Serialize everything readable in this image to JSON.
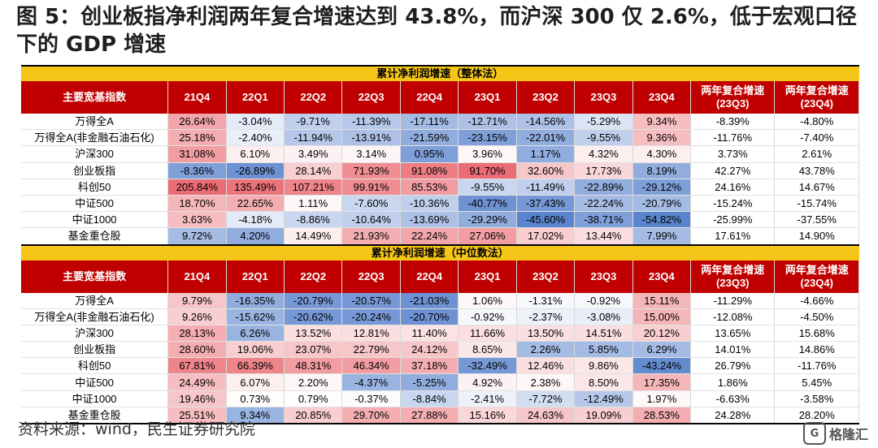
{
  "title": "图 5：创业板指净利润两年复合增速达到 43.8%，而沪深 300 仅 2.6%，低于宏观口径下的 GDP 增速",
  "source": "资料来源：wind，民生证券研究院",
  "watermark": "格隆汇",
  "watermark_logo": "G",
  "colors": {
    "header_bg": "#c00000",
    "section_bg": "#f5c518",
    "positive": "#e8636b",
    "negative": "#4a78c8"
  },
  "sections": [
    {
      "title": "累计净利润增速（整体法）",
      "headers": [
        "主要宽基指数",
        "21Q4",
        "22Q1",
        "22Q2",
        "22Q3",
        "22Q4",
        "23Q1",
        "23Q2",
        "23Q3",
        "23Q4",
        "两年复合增速\n(23Q3)",
        "两年复合增速\n(23Q4)"
      ],
      "rows": [
        [
          "万得全A",
          "26.64%",
          "-3.04%",
          "-9.71%",
          "-11.39%",
          "-17.11%",
          "-12.71%",
          "-14.56%",
          "-5.29%",
          "9.34%",
          "-8.39%",
          "-4.80%"
        ],
        [
          "万得全A(非金融石油石化)",
          "25.18%",
          "-2.40%",
          "-11.94%",
          "-13.91%",
          "-21.59%",
          "-23.15%",
          "-22.01%",
          "-9.55%",
          "9.36%",
          "-11.76%",
          "-7.40%"
        ],
        [
          "沪深300",
          "31.08%",
          "6.10%",
          "3.49%",
          "3.14%",
          "0.95%",
          "3.96%",
          "1.17%",
          "4.32%",
          "4.30%",
          "3.73%",
          "2.61%"
        ],
        [
          "创业板指",
          "-8.36%",
          "-26.89%",
          "28.14%",
          "71.93%",
          "91.08%",
          "91.70%",
          "32.60%",
          "17.73%",
          "8.19%",
          "42.27%",
          "43.78%"
        ],
        [
          "科创50",
          "205.84%",
          "135.49%",
          "107.21%",
          "99.91%",
          "85.53%",
          "-9.55%",
          "-11.49%",
          "-22.89%",
          "-29.12%",
          "24.16%",
          "14.67%"
        ],
        [
          "中证500",
          "18.70%",
          "22.65%",
          "1.11%",
          "-7.60%",
          "-10.36%",
          "-40.77%",
          "-37.43%",
          "-22.24%",
          "-20.79%",
          "-15.24%",
          "-15.74%"
        ],
        [
          "中证1000",
          "3.63%",
          "-4.18%",
          "-8.86%",
          "-10.64%",
          "-13.69%",
          "-29.29%",
          "-45.60%",
          "-38.71%",
          "-54.82%",
          "-25.99%",
          "-37.55%"
        ],
        [
          "基金重仓股",
          "9.72%",
          "4.20%",
          "14.49%",
          "21.93%",
          "22.24%",
          "27.06%",
          "17.02%",
          "13.44%",
          "7.99%",
          "17.61%",
          "14.90%"
        ]
      ],
      "shades": [
        [
          0.55,
          -0.15,
          -0.35,
          -0.4,
          -0.5,
          -0.45,
          -0.45,
          -0.2,
          0.4
        ],
        [
          0.5,
          -0.12,
          -0.4,
          -0.45,
          -0.6,
          -0.7,
          -0.6,
          -0.35,
          0.4
        ],
        [
          0.6,
          0.1,
          0.08,
          0.06,
          -0.7,
          0.05,
          -0.6,
          0.1,
          0.1
        ],
        [
          -0.7,
          -0.8,
          0.3,
          0.7,
          0.8,
          0.9,
          0.35,
          0.25,
          -0.6
        ],
        [
          0.9,
          0.85,
          0.75,
          0.7,
          0.6,
          -0.3,
          -0.35,
          -0.6,
          -0.7
        ],
        [
          0.45,
          0.5,
          0.05,
          -0.3,
          -0.35,
          -0.8,
          -0.75,
          -0.5,
          -0.5
        ],
        [
          0.4,
          -0.15,
          -0.3,
          -0.35,
          -0.45,
          -0.6,
          -0.9,
          -0.7,
          -0.9
        ],
        [
          -0.5,
          -0.6,
          0.1,
          0.5,
          0.55,
          0.6,
          0.3,
          0.2,
          -0.5
        ]
      ]
    },
    {
      "title": "累计净利润增速（中位数法）",
      "headers": [
        "主要宽基指数",
        "21Q4",
        "22Q1",
        "22Q2",
        "22Q3",
        "22Q4",
        "23Q1",
        "23Q2",
        "23Q3",
        "23Q4",
        "两年复合增速\n(23Q3)",
        "两年复合增速\n(23Q4)"
      ],
      "rows": [
        [
          "万得全A",
          "9.79%",
          "-16.35%",
          "-20.79%",
          "-20.57%",
          "-21.03%",
          "1.06%",
          "-1.31%",
          "-0.92%",
          "15.11%",
          "-11.29%",
          "-4.66%"
        ],
        [
          "万得全A(非金融石油石化)",
          "9.26%",
          "-15.62%",
          "-20.62%",
          "-20.24%",
          "-20.70%",
          "-0.92%",
          "-2.37%",
          "-3.08%",
          "15.00%",
          "-12.08%",
          "-4.50%"
        ],
        [
          "沪深300",
          "28.13%",
          "6.26%",
          "13.52%",
          "12.81%",
          "11.40%",
          "11.66%",
          "13.50%",
          "14.51%",
          "20.12%",
          "13.65%",
          "15.68%"
        ],
        [
          "创业板指",
          "28.60%",
          "19.06%",
          "23.07%",
          "22.79%",
          "24.12%",
          "8.65%",
          "2.26%",
          "5.85%",
          "6.29%",
          "14.01%",
          "14.86%"
        ],
        [
          "科创50",
          "67.81%",
          "66.39%",
          "48.31%",
          "46.34%",
          "37.18%",
          "-32.49%",
          "12.46%",
          "9.86%",
          "-43.24%",
          "26.79%",
          "-11.76%"
        ],
        [
          "中证500",
          "24.49%",
          "6.07%",
          "2.20%",
          "-4.37%",
          "-5.25%",
          "4.92%",
          "2.38%",
          "8.50%",
          "17.35%",
          "1.86%",
          "5.45%"
        ],
        [
          "中证1000",
          "19.46%",
          "0.73%",
          "0.79%",
          "-0.37%",
          "-8.84%",
          "-2.41%",
          "-7.72%",
          "-12.49%",
          "1.97%",
          "-6.63%",
          "-3.58%"
        ],
        [
          "基金重仓股",
          "25.51%",
          "9.34%",
          "20.85%",
          "29.70%",
          "27.88%",
          "15.16%",
          "24.63%",
          "19.09%",
          "28.53%",
          "24.28%",
          "28.20%"
        ]
      ],
      "shades": [
        [
          0.35,
          -0.6,
          -0.75,
          -0.75,
          -0.8,
          0.05,
          -0.05,
          -0.05,
          0.45
        ],
        [
          0.3,
          -0.55,
          -0.75,
          -0.75,
          -0.8,
          -0.05,
          -0.1,
          -0.12,
          0.45
        ],
        [
          0.5,
          -0.55,
          0.2,
          0.2,
          0.18,
          0.2,
          0.2,
          0.2,
          0.3
        ],
        [
          0.5,
          0.3,
          0.35,
          0.35,
          0.35,
          0.15,
          -0.5,
          -0.5,
          -0.5
        ],
        [
          0.75,
          0.75,
          0.6,
          0.6,
          0.5,
          -0.75,
          0.2,
          0.15,
          -0.85
        ],
        [
          0.4,
          0.1,
          0.05,
          -0.55,
          -0.6,
          0.08,
          0.05,
          0.15,
          0.45
        ],
        [
          0.35,
          0.02,
          0.02,
          -0.02,
          -0.3,
          -0.1,
          -0.25,
          -0.4,
          0.04
        ],
        [
          0.4,
          -0.55,
          0.3,
          0.5,
          0.5,
          0.25,
          0.35,
          0.3,
          0.5
        ]
      ]
    }
  ]
}
